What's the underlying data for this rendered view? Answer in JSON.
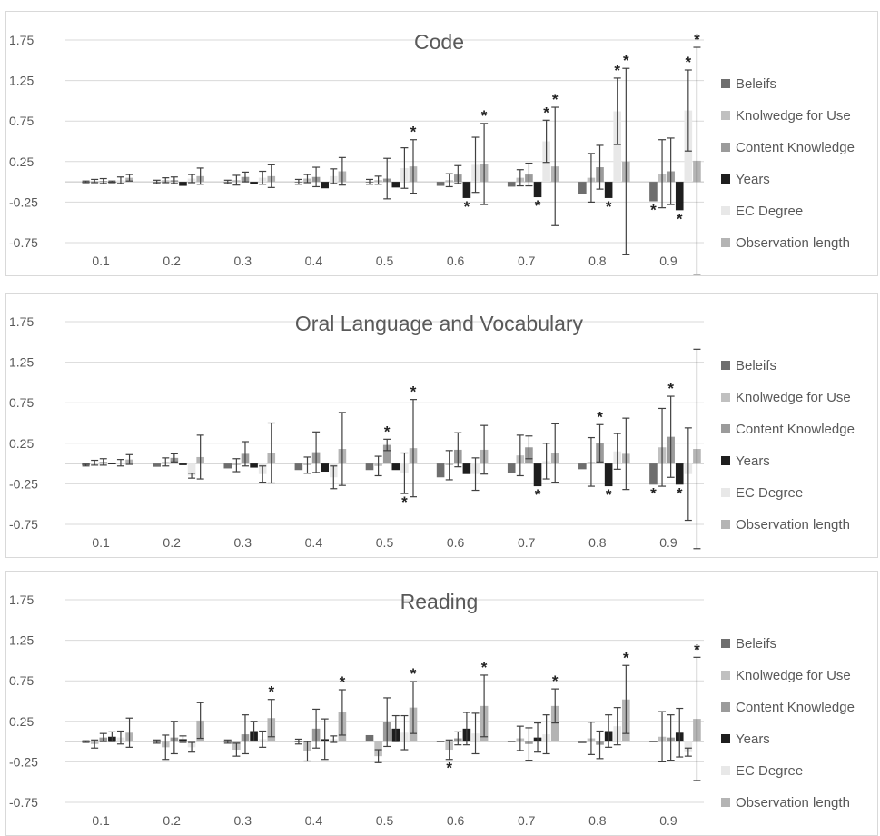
{
  "colors": {
    "series": [
      "#6e6e6e",
      "#c0c0c0",
      "#9b9b9b",
      "#1e1e1e",
      "#e8e8e8",
      "#b4b4b4"
    ],
    "grid": "#d9d9d9",
    "text": "#595959",
    "error_bar": "#404040"
  },
  "chart_data": [
    {
      "type": "bar",
      "title": "Code",
      "categories": [
        "0.1",
        "0.2",
        "0.3",
        "0.4",
        "0.5",
        "0.6",
        "0.7",
        "0.8",
        "0.9"
      ],
      "ylim": [
        -0.75,
        1.75
      ],
      "yticks": [
        "1.75",
        "1.25",
        "0.75",
        "0.25",
        "-0.25",
        "-0.75"
      ],
      "grid": true,
      "legend": "right",
      "series": [
        {
          "name": "Beleifs",
          "values": [
            0.0,
            0.0,
            0.0,
            0.0,
            0.0,
            -0.05,
            -0.06,
            -0.15,
            -0.24
          ],
          "errors": [
            0.01,
            0.02,
            0.02,
            0.03,
            0.03,
            0.0,
            0.0,
            0.0,
            0.0
          ]
        },
        {
          "name": "Knolwedge for Use",
          "values": [
            0.01,
            0.02,
            0.02,
            0.04,
            0.02,
            0.02,
            0.05,
            0.05,
            0.1
          ],
          "errors": [
            0.02,
            0.03,
            0.06,
            0.05,
            0.05,
            0.08,
            0.1,
            0.3,
            0.42
          ]
        },
        {
          "name": "Content Knowledge",
          "values": [
            0.01,
            0.02,
            0.06,
            0.06,
            0.04,
            0.09,
            0.09,
            0.18,
            0.13
          ],
          "errors": [
            0.03,
            0.04,
            0.06,
            0.12,
            0.25,
            0.11,
            0.14,
            0.27,
            0.41
          ]
        },
        {
          "name": "Years",
          "values": [
            0.0,
            -0.05,
            -0.03,
            -0.08,
            -0.07,
            -0.2,
            -0.19,
            -0.2,
            -0.35
          ],
          "errors": [
            0.01,
            0.0,
            0.0,
            0.0,
            0.0,
            0.0,
            0.0,
            0.0,
            0.0
          ]
        },
        {
          "name": "EC Degree",
          "values": [
            0.02,
            0.04,
            0.05,
            0.07,
            0.17,
            0.21,
            0.5,
            0.87,
            0.88
          ],
          "errors": [
            0.04,
            0.05,
            0.08,
            0.09,
            0.25,
            0.34,
            0.26,
            0.41,
            0.5
          ]
        },
        {
          "name": "Observation length",
          "values": [
            0.05,
            0.07,
            0.07,
            0.13,
            0.19,
            0.22,
            0.19,
            0.25,
            0.26
          ],
          "errors": [
            0.04,
            0.1,
            0.14,
            0.17,
            0.33,
            0.5,
            0.73,
            1.15,
            1.4
          ]
        }
      ],
      "significant": [
        {
          "category": "0.5",
          "series": "Observation length"
        },
        {
          "category": "0.6",
          "series": "Years"
        },
        {
          "category": "0.6",
          "series": "Observation length"
        },
        {
          "category": "0.7",
          "series": "Years"
        },
        {
          "category": "0.7",
          "series": "EC Degree"
        },
        {
          "category": "0.7",
          "series": "Observation length"
        },
        {
          "category": "0.8",
          "series": "Years"
        },
        {
          "category": "0.8",
          "series": "EC Degree"
        },
        {
          "category": "0.8",
          "series": "Observation length"
        },
        {
          "category": "0.9",
          "series": "Beleifs"
        },
        {
          "category": "0.9",
          "series": "Years"
        },
        {
          "category": "0.9",
          "series": "EC Degree"
        },
        {
          "category": "0.9",
          "series": "Observation length"
        }
      ]
    },
    {
      "type": "bar",
      "title": "Oral Language and Vocabulary",
      "categories": [
        "0.1",
        "0.2",
        "0.3",
        "0.4",
        "0.5",
        "0.6",
        "0.7",
        "0.8",
        "0.9"
      ],
      "ylim": [
        -0.75,
        1.75
      ],
      "yticks": [
        "1.75",
        "1.25",
        "0.75",
        "0.25",
        "-0.25",
        "-0.75"
      ],
      "grid": true,
      "legend": "right",
      "series": [
        {
          "name": "Beleifs",
          "values": [
            -0.02,
            -0.04,
            -0.06,
            -0.08,
            -0.08,
            -0.17,
            -0.12,
            -0.07,
            -0.26
          ],
          "errors": [
            0.01,
            0.0,
            0.0,
            0.0,
            0.0,
            0.0,
            0.0,
            0.0,
            0.0
          ]
        },
        {
          "name": "Knolwedge for Use",
          "values": [
            0.01,
            0.02,
            -0.02,
            -0.02,
            -0.03,
            -0.02,
            0.1,
            0.02,
            0.2
          ],
          "errors": [
            0.03,
            0.05,
            0.08,
            0.1,
            0.12,
            0.18,
            0.25,
            0.3,
            0.48
          ]
        },
        {
          "name": "Content Knowledge",
          "values": [
            0.02,
            0.07,
            0.12,
            0.14,
            0.23,
            0.17,
            0.2,
            0.25,
            0.33
          ],
          "errors": [
            0.04,
            0.05,
            0.15,
            0.25,
            0.07,
            0.21,
            0.14,
            0.23,
            0.5
          ]
        },
        {
          "name": "Years",
          "values": [
            -0.01,
            -0.02,
            -0.05,
            -0.1,
            -0.08,
            -0.13,
            -0.28,
            -0.28,
            -0.26
          ],
          "errors": [
            0.0,
            0.0,
            0.0,
            0.0,
            0.0,
            0.0,
            0.0,
            0.0,
            0.0
          ]
        },
        {
          "name": "EC Degree",
          "values": [
            0.01,
            -0.15,
            -0.13,
            -0.17,
            -0.12,
            -0.13,
            0.03,
            0.15,
            -0.13
          ],
          "errors": [
            0.04,
            0.03,
            0.1,
            0.14,
            0.25,
            0.2,
            0.22,
            0.22,
            0.57
          ]
        },
        {
          "name": "Observation length",
          "values": [
            0.05,
            0.08,
            0.13,
            0.18,
            0.19,
            0.17,
            0.13,
            0.12,
            0.18
          ],
          "errors": [
            0.06,
            0.27,
            0.37,
            0.45,
            0.6,
            0.3,
            0.36,
            0.44,
            1.23
          ]
        }
      ],
      "significant": [
        {
          "category": "0.5",
          "series": "Content Knowledge"
        },
        {
          "category": "0.5",
          "series": "EC Degree"
        },
        {
          "category": "0.5",
          "series": "Observation length"
        },
        {
          "category": "0.7",
          "series": "Years"
        },
        {
          "category": "0.8",
          "series": "Content Knowledge"
        },
        {
          "category": "0.8",
          "series": "Years"
        },
        {
          "category": "0.9",
          "series": "Beleifs"
        },
        {
          "category": "0.9",
          "series": "Content Knowledge"
        },
        {
          "category": "0.9",
          "series": "Years"
        }
      ]
    },
    {
      "type": "bar",
      "title": "Reading",
      "categories": [
        "0.1",
        "0.2",
        "0.3",
        "0.4",
        "0.5",
        "0.6",
        "0.7",
        "0.8",
        "0.9"
      ],
      "ylim": [
        -0.75,
        1.75
      ],
      "yticks": [
        "1.75",
        "1.25",
        "0.75",
        "0.25",
        "-0.25",
        "-0.75"
      ],
      "grid": true,
      "legend": "right",
      "series": [
        {
          "name": "Beleifs",
          "values": [
            0.0,
            0.0,
            0.0,
            0.0,
            0.08,
            -0.01,
            0.0,
            -0.02,
            -0.01
          ],
          "errors": [
            0.01,
            0.02,
            0.02,
            0.03,
            0.0,
            0.0,
            0.0,
            0.0,
            0.0
          ]
        },
        {
          "name": "Knolwedge for Use",
          "values": [
            -0.03,
            -0.07,
            -0.1,
            -0.12,
            -0.18,
            -0.1,
            0.04,
            0.04,
            0.06
          ],
          "errors": [
            0.05,
            0.15,
            0.08,
            0.12,
            0.08,
            0.12,
            0.15,
            0.2,
            0.31
          ]
        },
        {
          "name": "Content Knowledge",
          "values": [
            0.05,
            0.05,
            0.09,
            0.16,
            0.24,
            0.04,
            -0.03,
            -0.04,
            0.05
          ],
          "errors": [
            0.05,
            0.2,
            0.24,
            0.24,
            0.3,
            0.08,
            0.2,
            0.17,
            0.28
          ]
        },
        {
          "name": "Years",
          "values": [
            0.06,
            0.03,
            0.13,
            0.03,
            0.16,
            0.16,
            0.05,
            0.13,
            0.11
          ],
          "errors": [
            0.06,
            0.04,
            0.12,
            0.25,
            0.16,
            0.2,
            0.18,
            0.2,
            0.3
          ]
        },
        {
          "name": "EC Degree",
          "values": [
            0.05,
            -0.07,
            0.03,
            0.03,
            0.11,
            0.1,
            0.09,
            0.19,
            -0.13
          ],
          "errors": [
            0.08,
            0.06,
            0.1,
            0.04,
            0.21,
            0.25,
            0.24,
            0.23,
            0.05
          ]
        },
        {
          "name": "Observation length",
          "values": [
            0.11,
            0.26,
            0.29,
            0.36,
            0.42,
            0.44,
            0.44,
            0.52,
            0.28
          ],
          "errors": [
            0.18,
            0.22,
            0.23,
            0.28,
            0.32,
            0.38,
            0.21,
            0.42,
            0.76
          ]
        }
      ],
      "significant": [
        {
          "category": "0.3",
          "series": "Observation length"
        },
        {
          "category": "0.4",
          "series": "Observation length"
        },
        {
          "category": "0.5",
          "series": "Observation length"
        },
        {
          "category": "0.6",
          "series": "Knolwedge for Use"
        },
        {
          "category": "0.6",
          "series": "Observation length"
        },
        {
          "category": "0.7",
          "series": "Observation length"
        },
        {
          "category": "0.8",
          "series": "Observation length"
        },
        {
          "category": "0.9",
          "series": "Observation length"
        }
      ]
    }
  ]
}
